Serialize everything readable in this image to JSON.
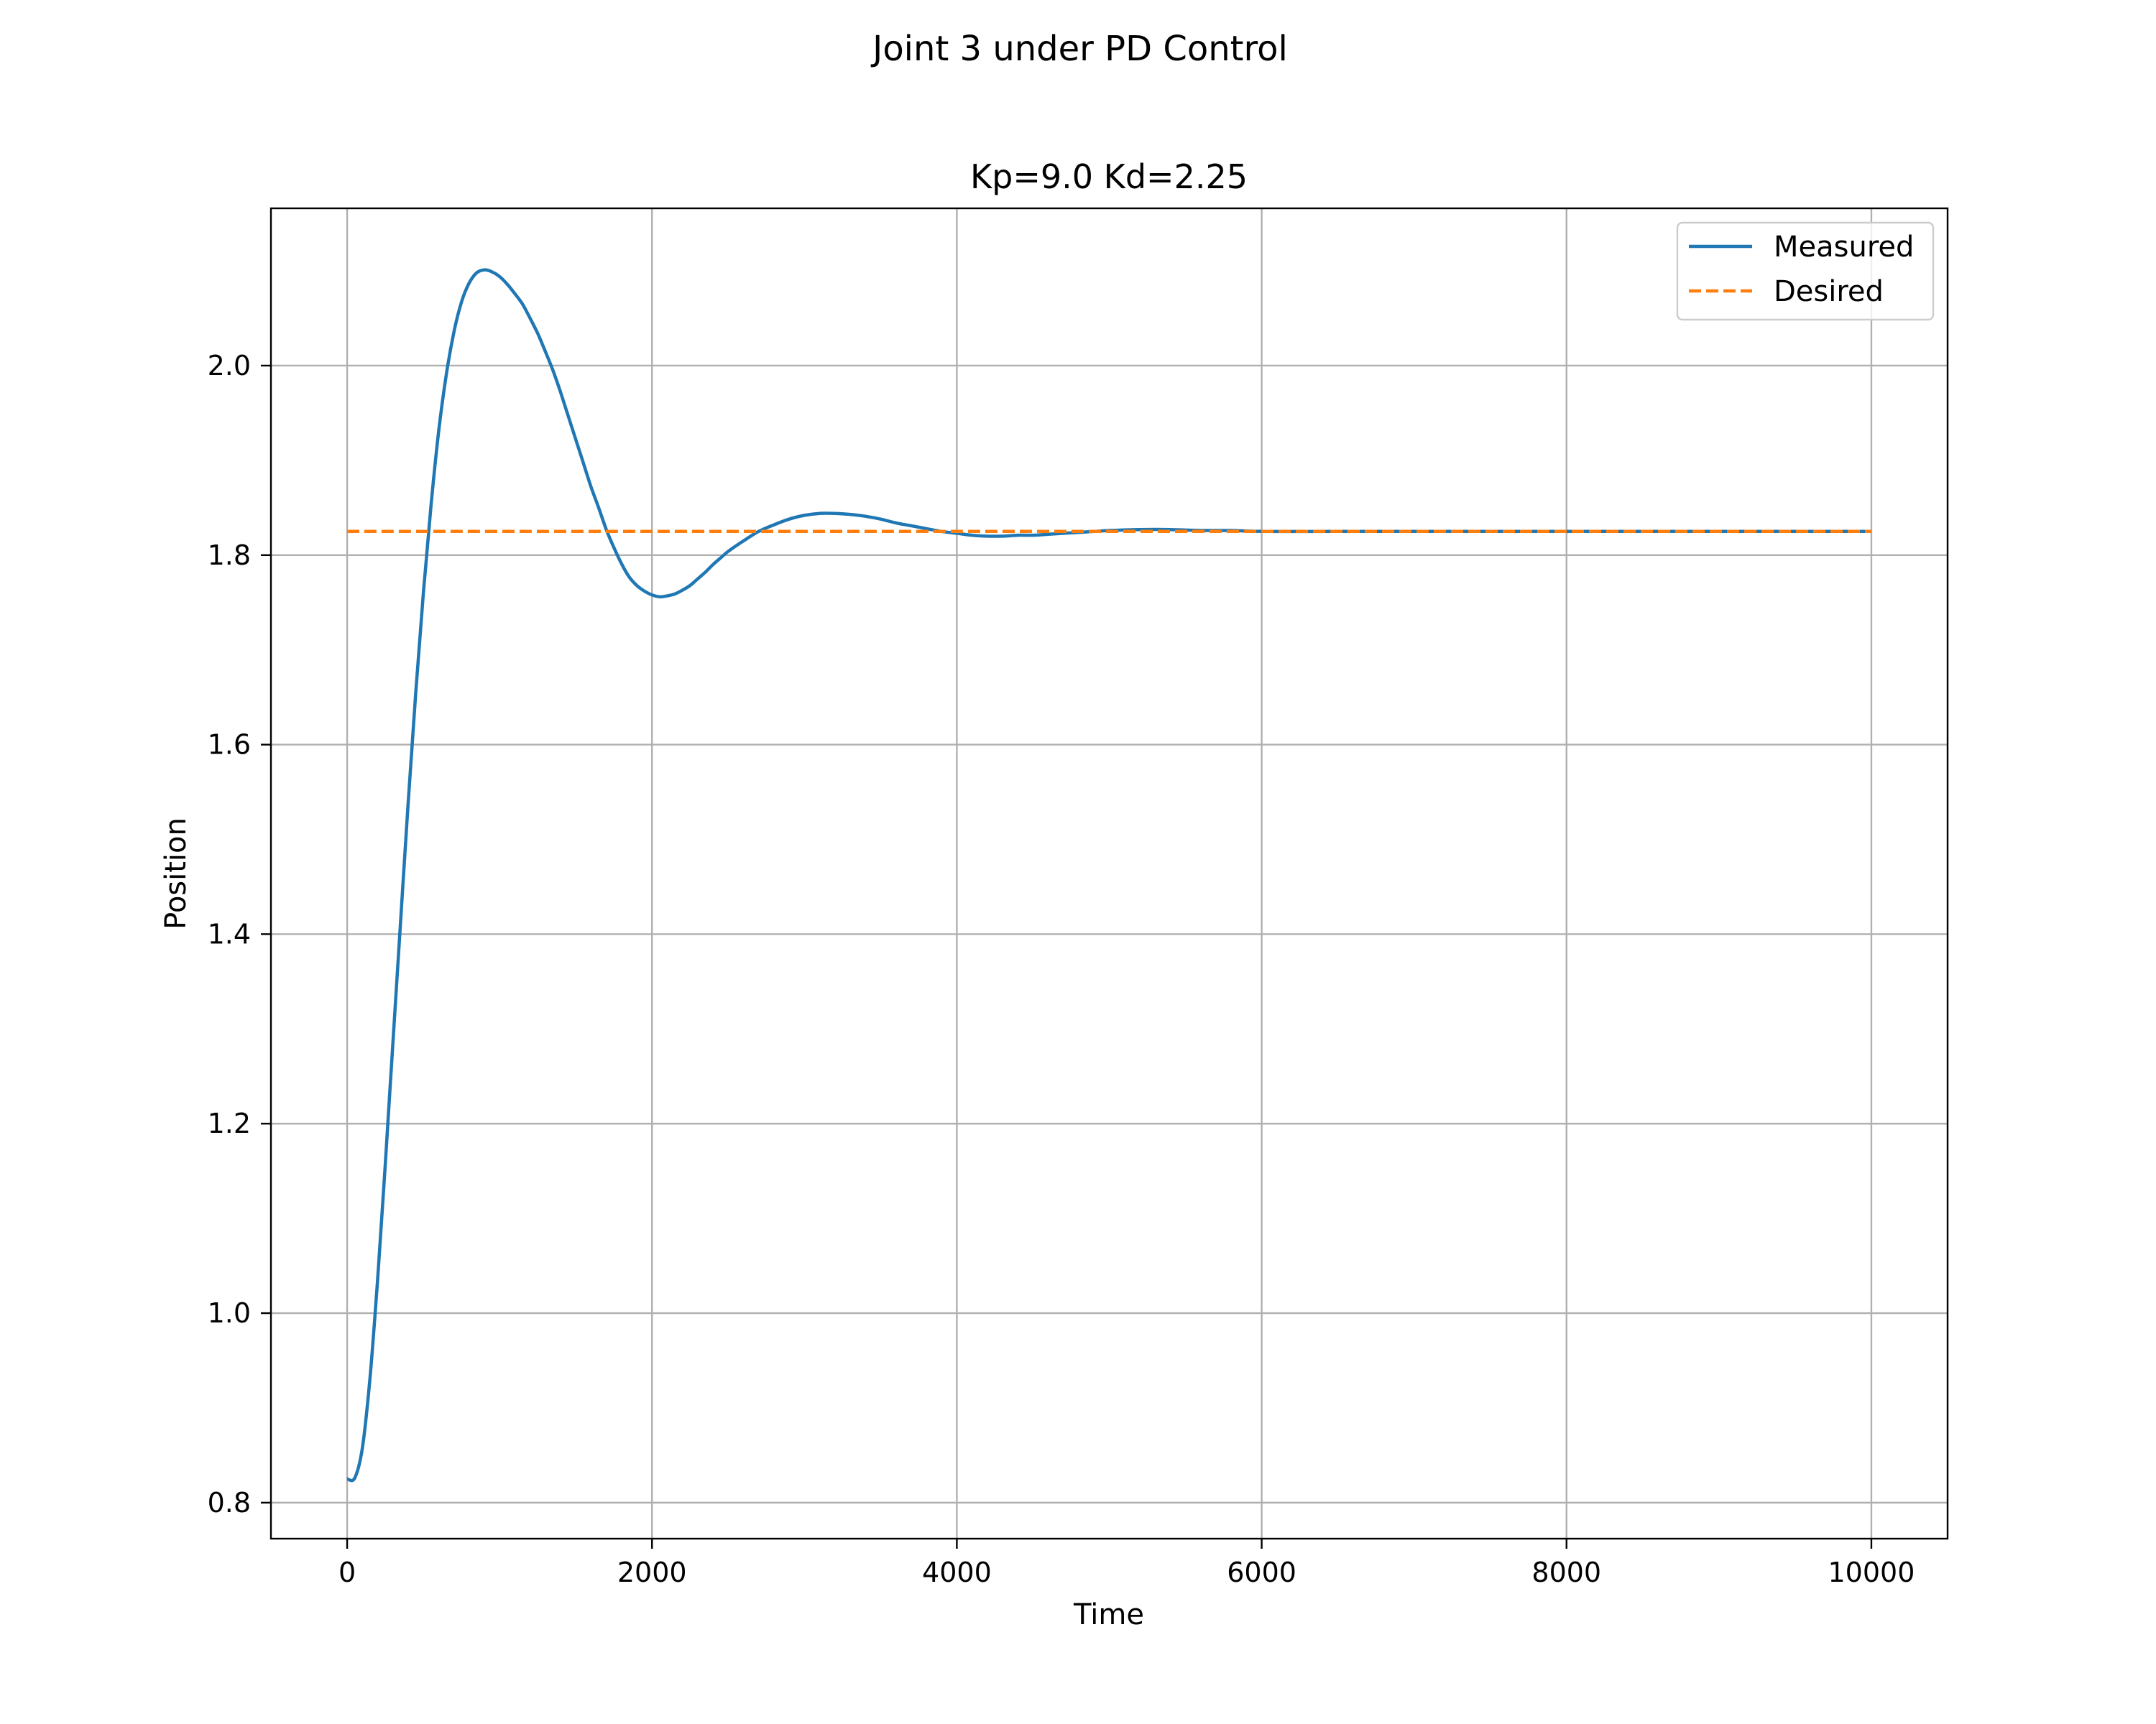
{
  "figure": {
    "suptitle": "Joint 3 under PD Control"
  },
  "chart_data": {
    "type": "line",
    "title": "Kp=9.0 Kd=2.25",
    "xlabel": "Time",
    "ylabel": "Position",
    "xlim": [
      -500,
      10500
    ],
    "ylim": [
      0.762,
      2.166
    ],
    "xticks": [
      0,
      2000,
      4000,
      6000,
      8000,
      10000
    ],
    "xtick_labels": [
      "0",
      "2000",
      "4000",
      "6000",
      "8000",
      "10000"
    ],
    "yticks": [
      0.8,
      1.0,
      1.2,
      1.4,
      1.6,
      1.8,
      2.0
    ],
    "ytick_labels": [
      "0.8",
      "1.0",
      "1.2",
      "1.4",
      "1.6",
      "1.8",
      "2.0"
    ],
    "grid": true,
    "legend_position": "top-right",
    "series": [
      {
        "name": "Measured",
        "style": "solid",
        "color": "#1f77b4",
        "x": [
          0,
          50,
          100,
          150,
          200,
          250,
          300,
          350,
          400,
          450,
          500,
          550,
          600,
          650,
          700,
          750,
          800,
          850,
          900,
          950,
          1000,
          1050,
          1100,
          1150,
          1200,
          1250,
          1300,
          1350,
          1400,
          1450,
          1500,
          1550,
          1600,
          1650,
          1700,
          1750,
          1800,
          1850,
          1900,
          1950,
          2000,
          2050,
          2100,
          2150,
          2200,
          2250,
          2300,
          2350,
          2400,
          2450,
          2500,
          2600,
          2700,
          2800,
          2900,
          3000,
          3100,
          3200,
          3300,
          3400,
          3500,
          3600,
          3700,
          3800,
          3900,
          4000,
          4100,
          4200,
          4300,
          4400,
          4500,
          4600,
          4700,
          4800,
          4900,
          5000,
          5200,
          5400,
          5600,
          5800,
          6000,
          6500,
          7000,
          7500,
          8000,
          8500,
          9000,
          9500,
          10000
        ],
        "y": [
          0.825,
          0.826,
          0.858,
          0.932,
          1.036,
          1.157,
          1.285,
          1.412,
          1.538,
          1.655,
          1.76,
          1.852,
          1.93,
          1.99,
          2.035,
          2.067,
          2.087,
          2.098,
          2.101,
          2.099,
          2.094,
          2.086,
          2.076,
          2.065,
          2.05,
          2.034,
          2.015,
          1.995,
          1.972,
          1.947,
          1.922,
          1.897,
          1.872,
          1.85,
          1.827,
          1.808,
          1.791,
          1.777,
          1.768,
          1.762,
          1.758,
          1.756,
          1.757,
          1.759,
          1.763,
          1.768,
          1.775,
          1.782,
          1.79,
          1.797,
          1.804,
          1.815,
          1.825,
          1.832,
          1.838,
          1.842,
          1.844,
          1.844,
          1.843,
          1.841,
          1.838,
          1.834,
          1.831,
          1.828,
          1.825,
          1.823,
          1.821,
          1.82,
          1.82,
          1.821,
          1.821,
          1.822,
          1.823,
          1.824,
          1.825,
          1.826,
          1.827,
          1.827,
          1.826,
          1.826,
          1.825,
          1.825,
          1.825,
          1.825,
          1.825,
          1.825,
          1.825,
          1.825,
          1.825
        ]
      },
      {
        "name": "Desired",
        "style": "dashed",
        "color": "#ff7f0e",
        "x": [
          0,
          10000
        ],
        "y": [
          1.825,
          1.825
        ]
      }
    ]
  }
}
